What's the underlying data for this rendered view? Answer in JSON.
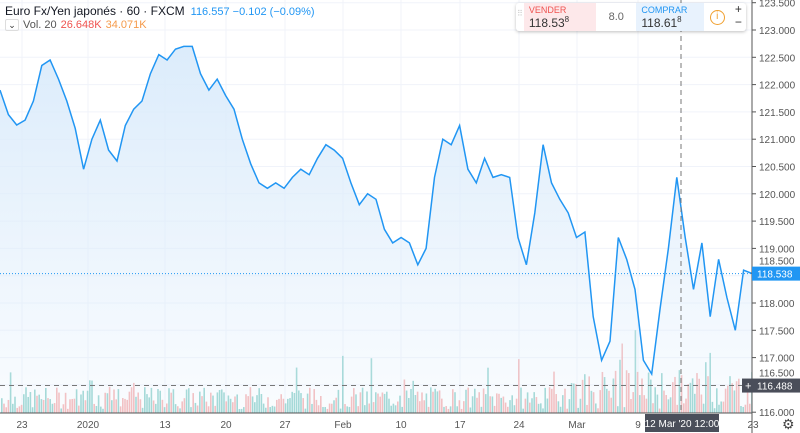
{
  "legend": {
    "symbol": "Euro Fx/Yen japonés · 60 · FXCM",
    "quote": "116.557 −0.102 (−0.09%)",
    "vol_label": "Vol. 20",
    "vol_a": "26.648K",
    "vol_b": "34.071K",
    "toggle": "⌄"
  },
  "trade": {
    "sell_label": "VENDER",
    "sell_price": "118.53",
    "sell_sup": "8",
    "spread": "8.0",
    "buy_label": "COMPRAR",
    "buy_price": "118.61",
    "buy_sup": "8",
    "info": "i",
    "plus": "+",
    "minus": "−"
  },
  "colors": {
    "line": "#2196f3",
    "fill": "#dcecfb",
    "vol_up": "#80cbc4",
    "vol_down": "#f4a6a6",
    "last_price_bg": "#2196f3",
    "crosshair_bg": "#4a4e5a"
  },
  "chart_data": {
    "type": "area",
    "title": "Euro Fx/Yen japonés · 60 · FXCM",
    "ylim": [
      115.95,
      123.55
    ],
    "y_ticks": [
      "123.500",
      "123.000",
      "122.500",
      "122.000",
      "121.500",
      "121.000",
      "120.500",
      "120.000",
      "119.500",
      "119.000",
      "118.500",
      "118.000",
      "117.500",
      "117.000",
      "116.500",
      "116.000"
    ],
    "x_ticks": [
      "23",
      "2020",
      "13",
      "20",
      "27",
      "Feb",
      "10",
      "17",
      "24",
      "Mar",
      "9",
      "23"
    ],
    "values": [
      121.9,
      121.45,
      121.26,
      121.35,
      121.7,
      122.35,
      122.45,
      122.1,
      121.7,
      121.2,
      120.45,
      121.0,
      121.35,
      120.8,
      120.6,
      121.25,
      121.55,
      121.7,
      122.2,
      122.55,
      122.45,
      122.65,
      122.7,
      122.7,
      122.2,
      121.9,
      122.1,
      121.8,
      121.55,
      121.0,
      120.55,
      120.2,
      120.1,
      120.2,
      120.1,
      120.3,
      120.45,
      120.35,
      120.65,
      120.9,
      120.8,
      120.65,
      120.2,
      119.8,
      120.0,
      119.9,
      119.35,
      119.1,
      119.2,
      119.1,
      118.7,
      119.0,
      120.3,
      121.0,
      120.9,
      121.25,
      120.45,
      120.2,
      120.65,
      120.3,
      120.35,
      120.3,
      119.2,
      118.7,
      119.65,
      120.9,
      120.2,
      119.9,
      119.65,
      119.2,
      119.3,
      117.75,
      116.95,
      117.3,
      119.2,
      118.8,
      118.25,
      116.95,
      116.7,
      117.9,
      119.0,
      120.3,
      119.2,
      118.25,
      119.1,
      117.75,
      118.8,
      118.1,
      117.5,
      118.6,
      118.54
    ],
    "last_price": "118.538",
    "crosshair_price": "116.488",
    "crosshair_time": "12 Mar '20   12:00"
  }
}
